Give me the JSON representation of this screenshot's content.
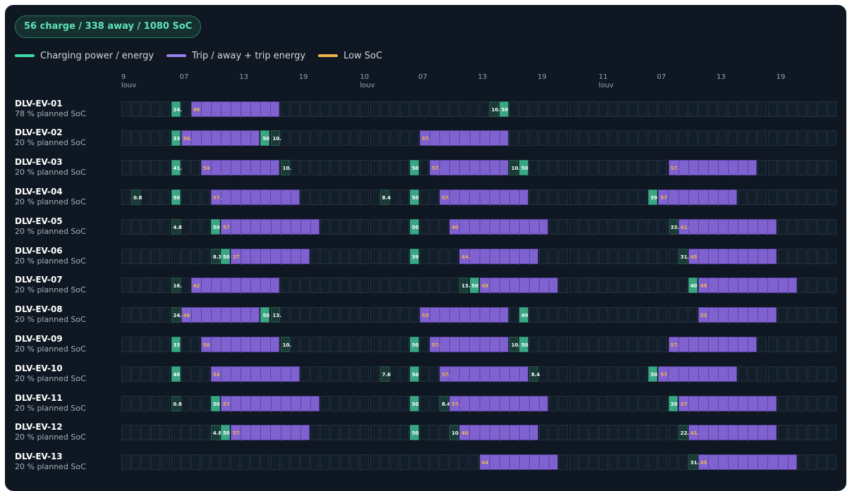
{
  "summary": "56 charge / 338 away / 1080 SoC",
  "legend": [
    {
      "label": "Charging power / energy",
      "color": "#3ddca9"
    },
    {
      "label": "Trip / away + trip energy",
      "color": "#9b7ef0"
    },
    {
      "label": "Low SoC",
      "color": "#f0b44a"
    }
  ],
  "axis_ticks": [
    {
      "slot": 0,
      "label": "9",
      "sub": "louv"
    },
    {
      "slot": 6,
      "label": "07"
    },
    {
      "slot": 12,
      "label": "13"
    },
    {
      "slot": 18,
      "label": "19"
    },
    {
      "slot": 24,
      "label": "10",
      "sub": "louv"
    },
    {
      "slot": 30,
      "label": "07"
    },
    {
      "slot": 36,
      "label": "13"
    },
    {
      "slot": 42,
      "label": "19"
    },
    {
      "slot": 48,
      "label": "11",
      "sub": "louv"
    },
    {
      "slot": 54,
      "label": "07"
    },
    {
      "slot": 60,
      "label": "13"
    },
    {
      "slot": 66,
      "label": "19"
    }
  ],
  "slot_count": 72,
  "vehicles": [
    {
      "id": "DLV-EV-01",
      "soc": "78 % planned SoC",
      "segments": [
        {
          "type": "charge",
          "start": 5,
          "len": 1,
          "label": "24."
        },
        {
          "type": "trip",
          "start": 7,
          "len": 9,
          "label": "46"
        },
        {
          "type": "low",
          "start": 37,
          "len": 1,
          "label": "10."
        },
        {
          "type": "charge",
          "start": 38,
          "len": 1,
          "label": "50"
        }
      ]
    },
    {
      "id": "DLV-EV-02",
      "soc": "20 % planned SoC",
      "segments": [
        {
          "type": "charge",
          "start": 5,
          "len": 1,
          "label": "33"
        },
        {
          "type": "trip",
          "start": 6,
          "len": 8,
          "label": "50."
        },
        {
          "type": "charge",
          "start": 14,
          "len": 1,
          "label": "50"
        },
        {
          "type": "low",
          "start": 15,
          "len": 1,
          "label": "10."
        },
        {
          "type": "trip",
          "start": 30,
          "len": 9,
          "label": "57."
        }
      ]
    },
    {
      "id": "DLV-EV-03",
      "soc": "20 % planned SoC",
      "segments": [
        {
          "type": "charge",
          "start": 5,
          "len": 1,
          "label": "41."
        },
        {
          "type": "trip",
          "start": 8,
          "len": 8,
          "label": "54"
        },
        {
          "type": "low",
          "start": 16,
          "len": 1,
          "label": "10."
        },
        {
          "type": "charge",
          "start": 29,
          "len": 1,
          "label": "50"
        },
        {
          "type": "trip",
          "start": 31,
          "len": 8,
          "label": "57."
        },
        {
          "type": "low",
          "start": 39,
          "len": 1,
          "label": "10."
        },
        {
          "type": "charge",
          "start": 40,
          "len": 1,
          "label": "50"
        },
        {
          "type": "trip",
          "start": 55,
          "len": 9,
          "label": "57."
        }
      ]
    },
    {
      "id": "DLV-EV-04",
      "soc": "20 % planned SoC",
      "segments": [
        {
          "type": "low",
          "start": 1,
          "len": 1,
          "label": "0.8"
        },
        {
          "type": "charge",
          "start": 5,
          "len": 1,
          "label": "50"
        },
        {
          "type": "trip",
          "start": 9,
          "len": 9,
          "label": "57."
        },
        {
          "type": "low",
          "start": 26,
          "len": 1,
          "label": "8.4"
        },
        {
          "type": "charge",
          "start": 29,
          "len": 1,
          "label": "50"
        },
        {
          "type": "trip",
          "start": 32,
          "len": 9,
          "label": "57."
        },
        {
          "type": "charge",
          "start": 53,
          "len": 1,
          "label": "39"
        },
        {
          "type": "trip",
          "start": 54,
          "len": 8,
          "label": "57"
        }
      ]
    },
    {
      "id": "DLV-EV-05",
      "soc": "20 % planned SoC",
      "segments": [
        {
          "type": "low",
          "start": 5,
          "len": 1,
          "label": "4.8"
        },
        {
          "type": "charge",
          "start": 9,
          "len": 1,
          "label": "50"
        },
        {
          "type": "trip",
          "start": 10,
          "len": 10,
          "label": "57"
        },
        {
          "type": "charge",
          "start": 29,
          "len": 1,
          "label": "50"
        },
        {
          "type": "trip",
          "start": 33,
          "len": 10,
          "label": "40"
        },
        {
          "type": "low",
          "start": 55,
          "len": 1,
          "label": "33."
        },
        {
          "type": "trip",
          "start": 56,
          "len": 10,
          "label": "41."
        }
      ]
    },
    {
      "id": "DLV-EV-06",
      "soc": "20 % planned SoC",
      "segments": [
        {
          "type": "low",
          "start": 9,
          "len": 1,
          "label": "8.3"
        },
        {
          "type": "charge",
          "start": 10,
          "len": 1,
          "label": "50"
        },
        {
          "type": "trip",
          "start": 11,
          "len": 8,
          "label": "37"
        },
        {
          "type": "charge",
          "start": 29,
          "len": 1,
          "label": "39"
        },
        {
          "type": "trip",
          "start": 34,
          "len": 8,
          "label": "44."
        },
        {
          "type": "low",
          "start": 56,
          "len": 1,
          "label": "31."
        },
        {
          "type": "trip",
          "start": 57,
          "len": 9,
          "label": "45"
        }
      ]
    },
    {
      "id": "DLV-EV-07",
      "soc": "20 % planned SoC",
      "segments": [
        {
          "type": "low",
          "start": 5,
          "len": 1,
          "label": "16."
        },
        {
          "type": "trip",
          "start": 7,
          "len": 9,
          "label": "42"
        },
        {
          "type": "low",
          "start": 34,
          "len": 1,
          "label": "13."
        },
        {
          "type": "charge",
          "start": 35,
          "len": 1,
          "label": "50"
        },
        {
          "type": "trip",
          "start": 36,
          "len": 8,
          "label": "49"
        },
        {
          "type": "charge",
          "start": 57,
          "len": 1,
          "label": "40"
        },
        {
          "type": "trip",
          "start": 58,
          "len": 10,
          "label": "49"
        }
      ]
    },
    {
      "id": "DLV-EV-08",
      "soc": "20 % planned SoC",
      "segments": [
        {
          "type": "low",
          "start": 5,
          "len": 1,
          "label": "24."
        },
        {
          "type": "trip",
          "start": 6,
          "len": 8,
          "label": "46"
        },
        {
          "type": "charge",
          "start": 14,
          "len": 1,
          "label": "50"
        },
        {
          "type": "low",
          "start": 15,
          "len": 1,
          "label": "13."
        },
        {
          "type": "trip",
          "start": 30,
          "len": 9,
          "label": "53"
        },
        {
          "type": "charge",
          "start": 40,
          "len": 1,
          "label": "49"
        },
        {
          "type": "trip",
          "start": 58,
          "len": 8,
          "label": "53"
        }
      ]
    },
    {
      "id": "DLV-EV-09",
      "soc": "20 % planned SoC",
      "segments": [
        {
          "type": "charge",
          "start": 5,
          "len": 1,
          "label": "33"
        },
        {
          "type": "trip",
          "start": 8,
          "len": 8,
          "label": "50"
        },
        {
          "type": "low",
          "start": 16,
          "len": 1,
          "label": "10."
        },
        {
          "type": "charge",
          "start": 29,
          "len": 1,
          "label": "50"
        },
        {
          "type": "trip",
          "start": 31,
          "len": 8,
          "label": "57."
        },
        {
          "type": "low",
          "start": 39,
          "len": 1,
          "label": "10."
        },
        {
          "type": "charge",
          "start": 40,
          "len": 1,
          "label": "50"
        },
        {
          "type": "trip",
          "start": 55,
          "len": 9,
          "label": "57."
        }
      ]
    },
    {
      "id": "DLV-EV-10",
      "soc": "20 % planned SoC",
      "segments": [
        {
          "type": "charge",
          "start": 5,
          "len": 1,
          "label": "46"
        },
        {
          "type": "trip",
          "start": 9,
          "len": 9,
          "label": "54"
        },
        {
          "type": "low",
          "start": 26,
          "len": 1,
          "label": "7.6"
        },
        {
          "type": "charge",
          "start": 29,
          "len": 1,
          "label": "50"
        },
        {
          "type": "trip",
          "start": 32,
          "len": 9,
          "label": "57."
        },
        {
          "type": "low",
          "start": 41,
          "len": 1,
          "label": "8.4"
        },
        {
          "type": "charge",
          "start": 53,
          "len": 1,
          "label": "50"
        },
        {
          "type": "trip",
          "start": 54,
          "len": 8,
          "label": "57"
        }
      ]
    },
    {
      "id": "DLV-EV-11",
      "soc": "20 % planned SoC",
      "segments": [
        {
          "type": "low",
          "start": 5,
          "len": 1,
          "label": "0.8"
        },
        {
          "type": "charge",
          "start": 9,
          "len": 1,
          "label": "50"
        },
        {
          "type": "trip",
          "start": 10,
          "len": 10,
          "label": "57"
        },
        {
          "type": "charge",
          "start": 29,
          "len": 1,
          "label": "50"
        },
        {
          "type": "low",
          "start": 32,
          "len": 1,
          "label": "8.4"
        },
        {
          "type": "trip",
          "start": 33,
          "len": 10,
          "label": "57."
        },
        {
          "type": "charge",
          "start": 55,
          "len": 1,
          "label": "39"
        },
        {
          "type": "trip",
          "start": 56,
          "len": 10,
          "label": "37"
        }
      ]
    },
    {
      "id": "DLV-EV-12",
      "soc": "20 % planned SoC",
      "segments": [
        {
          "type": "low",
          "start": 9,
          "len": 1,
          "label": "4.8"
        },
        {
          "type": "charge",
          "start": 10,
          "len": 1,
          "label": "50"
        },
        {
          "type": "trip",
          "start": 11,
          "len": 8,
          "label": "57"
        },
        {
          "type": "charge",
          "start": 29,
          "len": 1,
          "label": "50"
        },
        {
          "type": "low",
          "start": 33,
          "len": 1,
          "label": "10."
        },
        {
          "type": "trip",
          "start": 34,
          "len": 8,
          "label": "40"
        },
        {
          "type": "low",
          "start": 56,
          "len": 1,
          "label": "22."
        },
        {
          "type": "trip",
          "start": 57,
          "len": 9,
          "label": "41."
        }
      ]
    },
    {
      "id": "DLV-EV-13",
      "soc": "20 % planned SoC",
      "segments": [
        {
          "type": "trip",
          "start": 36,
          "len": 8,
          "label": "44"
        },
        {
          "type": "low",
          "start": 57,
          "len": 1,
          "label": "31."
        },
        {
          "type": "trip",
          "start": 58,
          "len": 10,
          "label": "45"
        }
      ]
    }
  ]
}
